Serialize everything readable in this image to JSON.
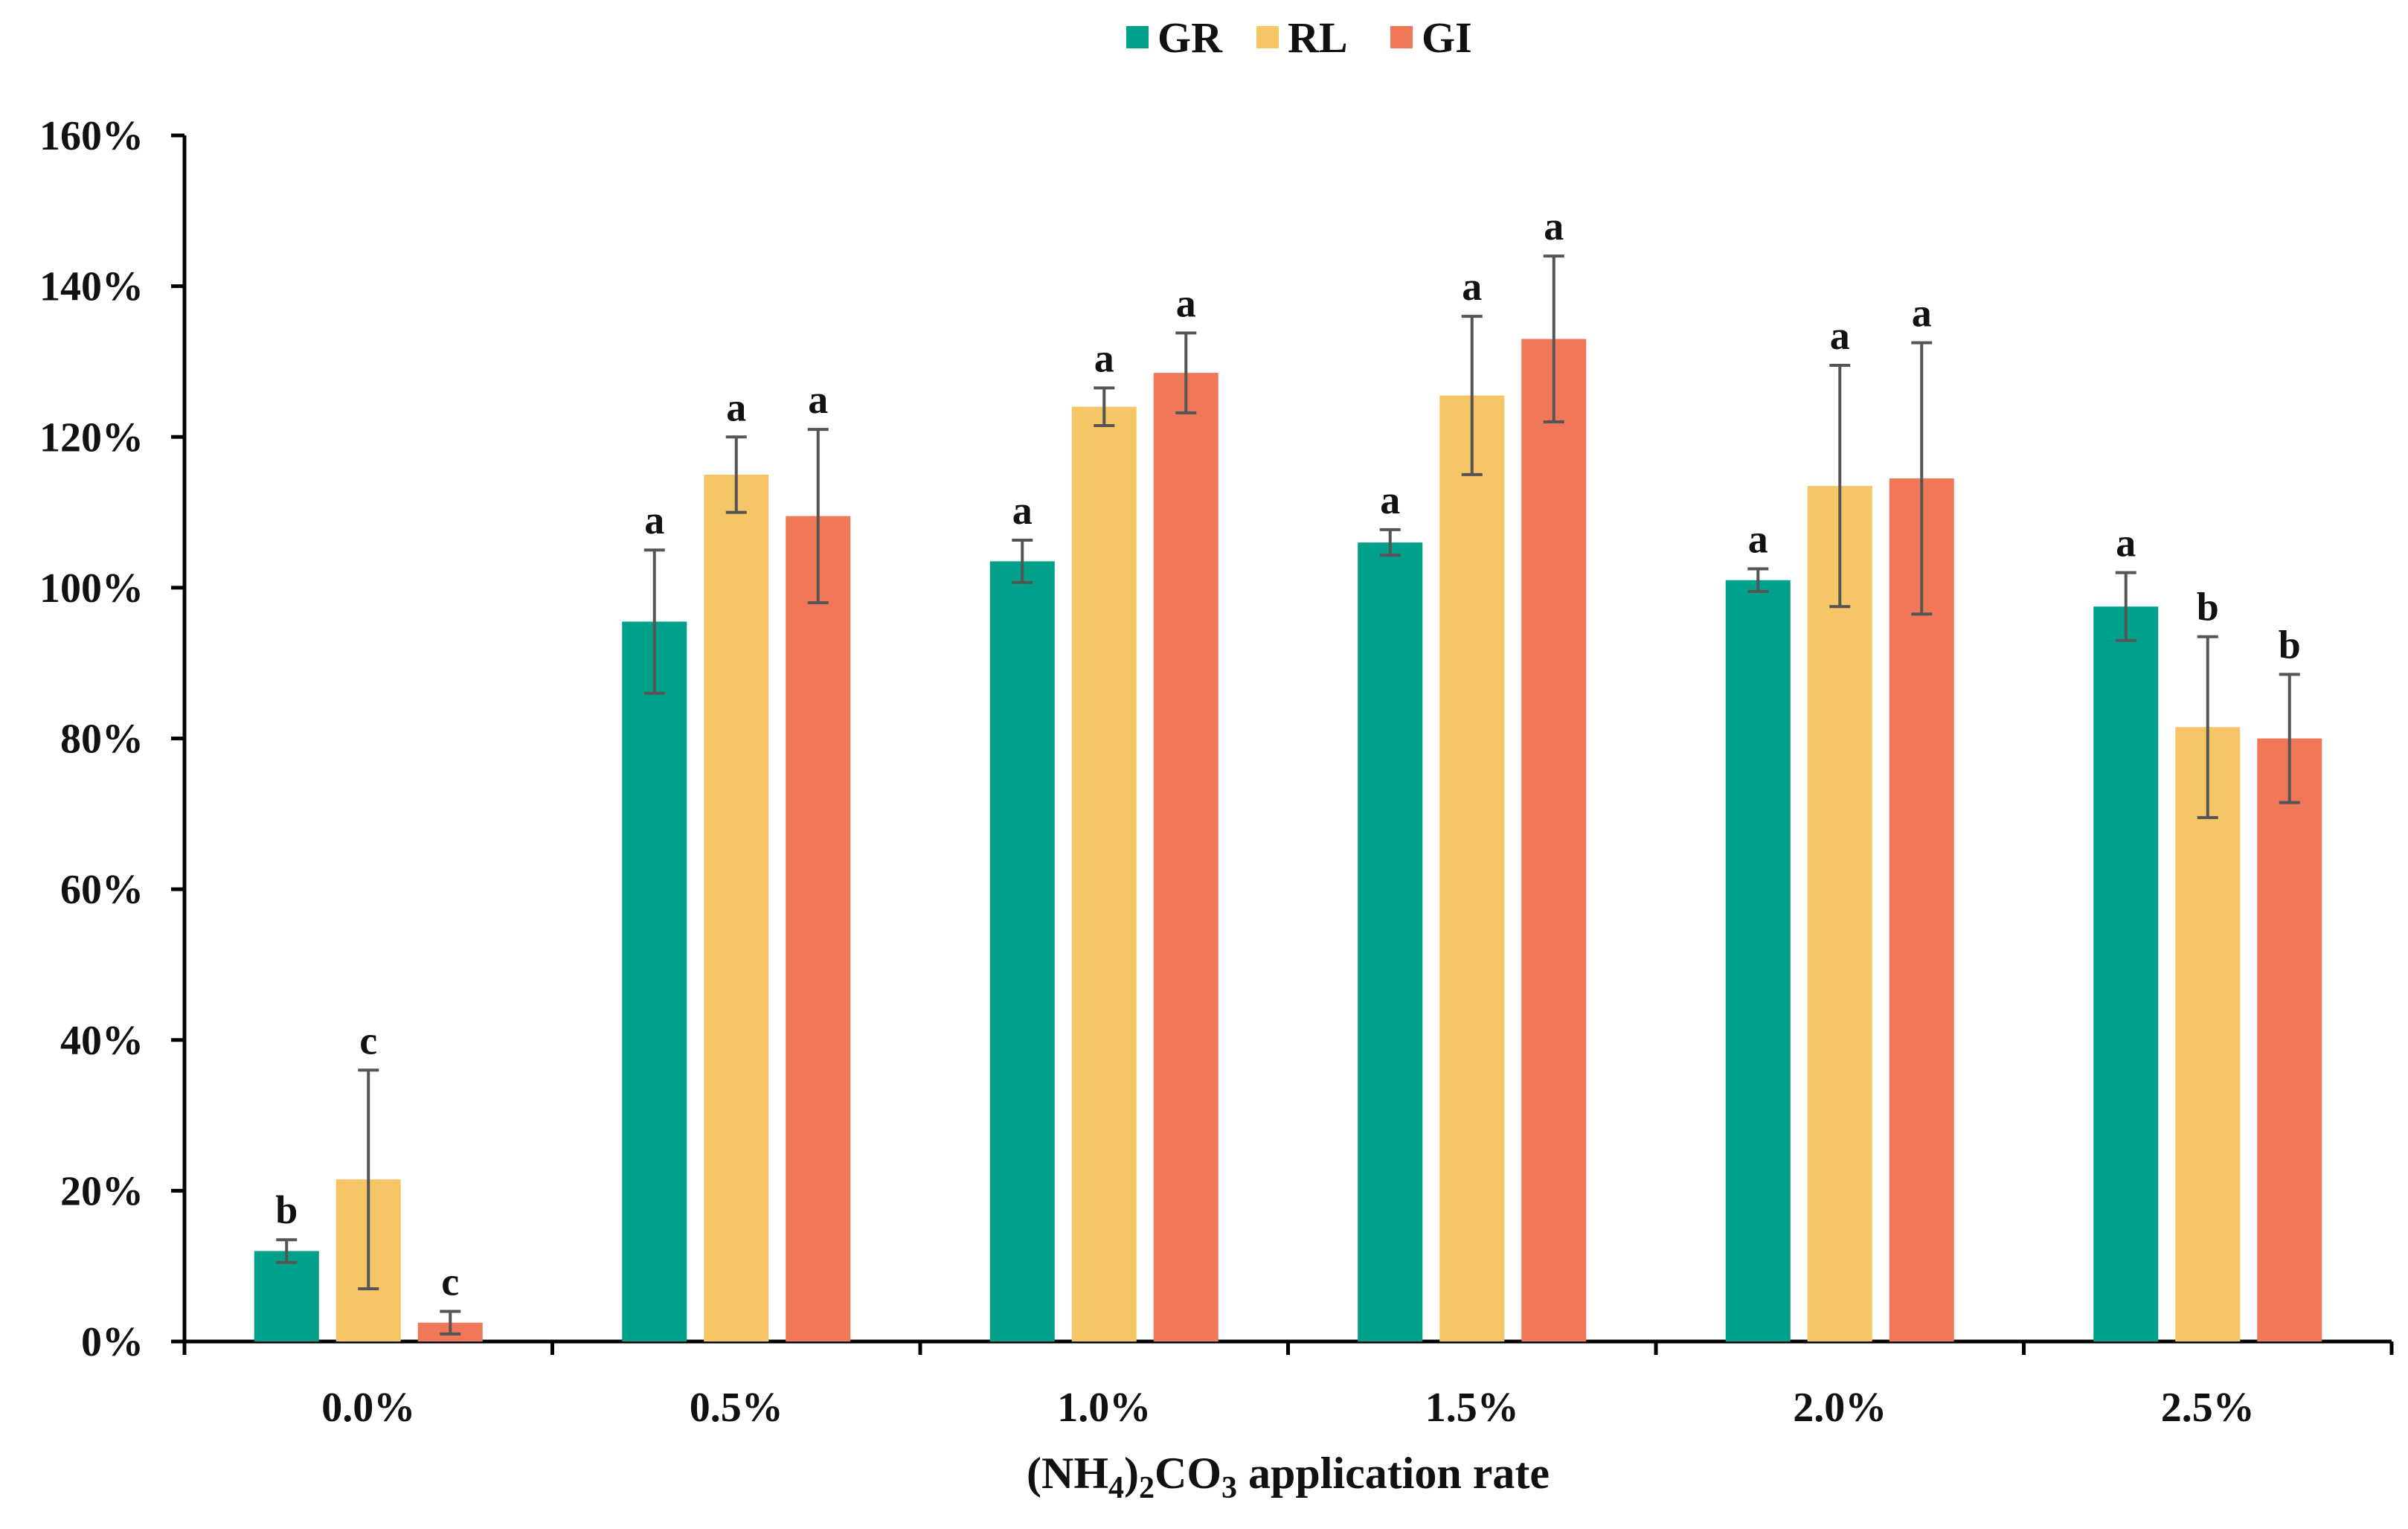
{
  "chart_data": {
    "type": "bar",
    "title": "",
    "xlabel": "(NH4)2CO3 application rate",
    "xlabel_parts": {
      "prefix": "(NH",
      "sub1": "4",
      "mid": ")",
      "sub2": "2",
      "mid2": "CO",
      "sub3": "3",
      "suffix": " application rate"
    },
    "ylabel": "",
    "ylim": [
      0,
      160
    ],
    "yticks": [
      0,
      20,
      40,
      60,
      80,
      100,
      120,
      140,
      160
    ],
    "ytick_labels": [
      "0%",
      "20%",
      "40%",
      "60%",
      "80%",
      "100%",
      "120%",
      "140%",
      "160%"
    ],
    "categories": [
      "0.0%",
      "0.5%",
      "1.0%",
      "1.5%",
      "2.0%",
      "2.5%"
    ],
    "legend_position": "top-center",
    "series": [
      {
        "name": "GR",
        "color": "#00A08A",
        "values": [
          12,
          95.5,
          103.5,
          106,
          101,
          97.5
        ],
        "errors": [
          1.5,
          9.5,
          2.8,
          1.7,
          1.5,
          4.5
        ],
        "labels": [
          "b",
          "a",
          "a",
          "a",
          "a",
          "a"
        ]
      },
      {
        "name": "RL",
        "color": "#F5C566",
        "values": [
          21.5,
          115,
          124,
          125.5,
          113.5,
          81.5
        ],
        "errors": [
          14.5,
          5,
          2.5,
          10.5,
          16,
          12
        ],
        "labels": [
          "c",
          "a",
          "a",
          "a",
          "a",
          "b"
        ]
      },
      {
        "name": "GI",
        "color": "#F07858",
        "values": [
          2.5,
          109.5,
          128.5,
          133,
          114.5,
          80
        ],
        "errors": [
          1.5,
          11.5,
          5.3,
          11,
          18,
          8.5
        ],
        "labels": [
          "c",
          "a",
          "a",
          "a",
          "a",
          "b"
        ]
      }
    ]
  }
}
